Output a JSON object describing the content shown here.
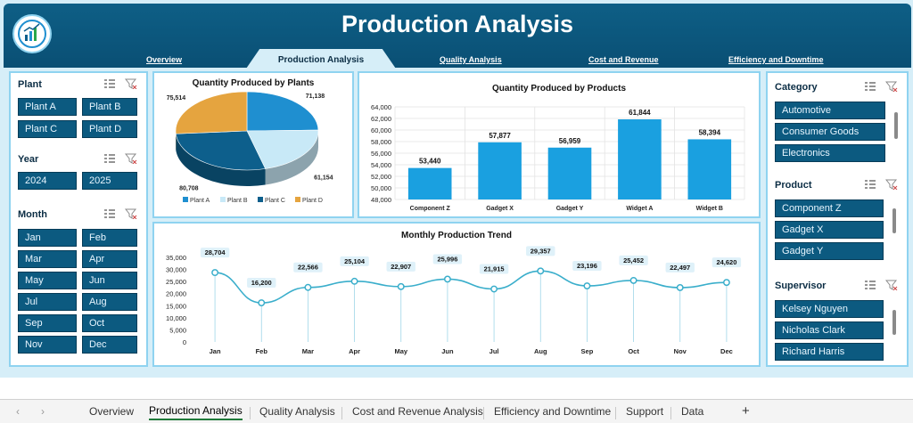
{
  "header": {
    "title": "Production Analysis",
    "nav": [
      {
        "label": "Overview"
      },
      {
        "label": "Production Analysis"
      },
      {
        "label": "Quality Analysis"
      },
      {
        "label": "Cost and Revenue"
      },
      {
        "label": "Efficiency and Downtime"
      }
    ]
  },
  "slicers": {
    "plant": {
      "title": "Plant",
      "items": [
        "Plant A",
        "Plant B",
        "Plant C",
        "Plant D"
      ]
    },
    "year": {
      "title": "Year",
      "items": [
        "2024",
        "2025"
      ]
    },
    "month": {
      "title": "Month",
      "items": [
        "Jan",
        "Feb",
        "Mar",
        "Apr",
        "May",
        "Jun",
        "Jul",
        "Aug",
        "Sep",
        "Oct",
        "Nov",
        "Dec"
      ]
    },
    "category": {
      "title": "Category",
      "items": [
        "Automotive",
        "Consumer Goods",
        "Electronics"
      ]
    },
    "product": {
      "title": "Product",
      "items": [
        "Component Z",
        "Gadget X",
        "Gadget Y"
      ]
    },
    "supervisor": {
      "title": "Supervisor",
      "items": [
        "Kelsey Nguyen",
        "Nicholas Clark",
        "Richard Harris"
      ]
    }
  },
  "chart_data": [
    {
      "type": "pie",
      "title": "Quantity Produced by Plants",
      "categories": [
        "Plant A",
        "Plant B",
        "Plant C",
        "Plant D"
      ],
      "values": [
        71138,
        61154,
        80708,
        75514
      ],
      "labels": [
        "71,138",
        "61,154",
        "80,708",
        "75,514"
      ],
      "colors": [
        "#1f8fd0",
        "#c8e9f7",
        "#0d5f8c",
        "#e5a43f"
      ],
      "legend": "bottom"
    },
    {
      "type": "bar",
      "title": "Quantity Produced by Products",
      "categories": [
        "Component Z",
        "Gadget X",
        "Gadget Y",
        "Widget A",
        "Widget B"
      ],
      "values": [
        53440,
        57877,
        56959,
        61844,
        58394
      ],
      "labels": [
        "53,440",
        "57,877",
        "56,959",
        "61,844",
        "58,394"
      ],
      "ylim": [
        48000,
        64000
      ],
      "yticks": [
        "64,000",
        "62,000",
        "60,000",
        "58,000",
        "56,000",
        "54,000",
        "52,000",
        "50,000",
        "48,000"
      ],
      "color": "#1aa0e0"
    },
    {
      "type": "line",
      "title": "Monthly Production Trend",
      "categories": [
        "Jan",
        "Feb",
        "Mar",
        "Apr",
        "May",
        "Jun",
        "Jul",
        "Aug",
        "Sep",
        "Oct",
        "Nov",
        "Dec"
      ],
      "values": [
        28704,
        16200,
        22566,
        25104,
        22907,
        25996,
        21915,
        29357,
        23196,
        25452,
        22497,
        24620
      ],
      "labels": [
        "28,704",
        "16,200",
        "22,566",
        "25,104",
        "22,907",
        "25,996",
        "21,915",
        "29,357",
        "23,196",
        "25,452",
        "22,497",
        "24,620"
      ],
      "ylim": [
        0,
        35000
      ],
      "yticks": [
        "35,000",
        "30,000",
        "25,000",
        "20,000",
        "15,000",
        "10,000",
        "5,000",
        "0"
      ],
      "color": "#3aaecb"
    }
  ],
  "tabs": [
    "Overview",
    "Production Analysis",
    "Quality Analysis",
    "Cost and Revenue Analysis",
    "Efficiency and Downtime",
    "Support",
    "Data"
  ],
  "tab_add": "+"
}
